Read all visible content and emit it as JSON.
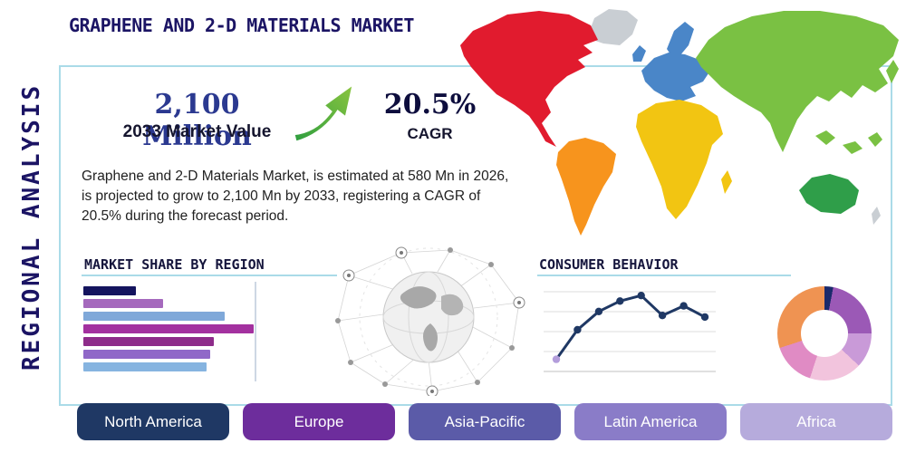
{
  "palette": {
    "navy": "#1b1464",
    "frame_border": "#aadbe8",
    "market_value_blue": "#2b3990",
    "cagr_navy": "#0d0d3d",
    "body_text": "#212121",
    "arrow_green_dark": "#2e9e3f",
    "arrow_green_light": "#8bc53f"
  },
  "sidebar": {
    "label": "REGIONAL ANALYSIS"
  },
  "header": {
    "title": "GRAPHENE AND 2-D MATERIALS MARKET"
  },
  "stats": {
    "market_value": "2,100 Million",
    "market_value_label": "2033 Market Value",
    "cagr_value": "20.5%",
    "cagr_label": "CAGR"
  },
  "description": "Graphene and 2-D Materials Market, is estimated at 580 Mn in 2026, is projected to grow to 2,100 Mn by 2033, registering a CAGR of 20.5% during the forecast period.",
  "sections": {
    "market_share_title": "MARKET SHARE BY REGION",
    "consumer_behavior_title": "CONSUMER BEHAVIOR"
  },
  "icons": {
    "growth_arrow": "up-right-growth-arrow",
    "globe_network": "connected-globe-illustration",
    "world_map": "world-map-by-region"
  },
  "region_buttons": [
    {
      "label": "North America",
      "color": "#1f3864"
    },
    {
      "label": "Europe",
      "color": "#6d2d9c"
    },
    {
      "label": "Asia-Pacific",
      "color": "#5b5ba8"
    },
    {
      "label": "Latin America",
      "color": "#8a7cc8"
    },
    {
      "label": "Africa",
      "color": "#b6abdc"
    }
  ],
  "map": {
    "colors": {
      "north_america": "#e11b2e",
      "greenland": "#c9ced3",
      "south_america": "#f7941d",
      "europe": "#4a86c8",
      "africa": "#f2c512",
      "asia": "#7ac143",
      "australia": "#2f9e49",
      "islands": "#c9ced3"
    }
  },
  "chart_data": [
    {
      "type": "bar",
      "orientation": "horizontal",
      "title": "MARKET SHARE BY REGION",
      "categories": [
        "",
        "",
        "",
        "",
        "",
        "",
        ""
      ],
      "values": [
        29,
        44,
        78,
        94,
        72,
        70,
        68
      ],
      "xlim": [
        0,
        100
      ],
      "colors": [
        "#14145e",
        "#a569bd",
        "#7fa8d9",
        "#a3319f",
        "#8e2c8a",
        "#9068c8",
        "#86b4e0"
      ]
    },
    {
      "type": "line",
      "title": "CONSUMER BEHAVIOR",
      "x": [
        1,
        2,
        3,
        4,
        5,
        6,
        7,
        8
      ],
      "values": [
        13,
        50,
        73,
        86,
        93,
        68,
        80,
        66
      ],
      "ylim": [
        0,
        100
      ],
      "line_color": "#1f3864",
      "first_point_color": "#b39ddb",
      "grid": true
    },
    {
      "type": "pie",
      "donut": true,
      "title": "Regional share donut",
      "values": [
        3,
        22,
        12,
        18,
        15,
        30
      ],
      "colors": [
        "#1b2a6b",
        "#9b59b6",
        "#c99ad8",
        "#f2c4dd",
        "#e08bc4",
        "#ef9352"
      ]
    }
  ]
}
